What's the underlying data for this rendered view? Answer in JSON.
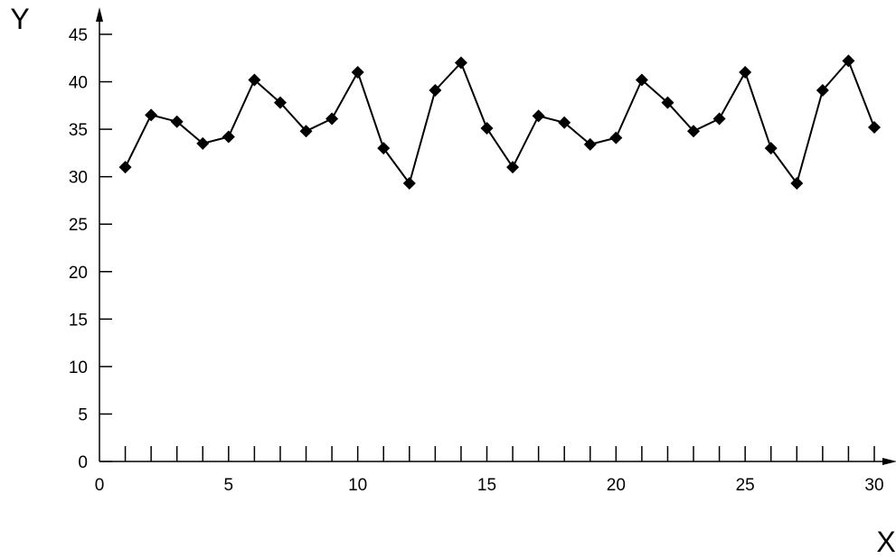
{
  "chart_data": {
    "type": "line",
    "title": "",
    "xlabel": "X",
    "ylabel": "Y",
    "xlim": [
      0,
      30
    ],
    "ylim": [
      0,
      45
    ],
    "x_ticks": [
      0,
      5,
      10,
      15,
      20,
      25,
      30
    ],
    "y_ticks": [
      0,
      5,
      10,
      15,
      20,
      25,
      30,
      35,
      40,
      45
    ],
    "x_tick_labels": [
      "0",
      "5",
      "10",
      "15",
      "20",
      "25",
      "30"
    ],
    "y_tick_labels": [
      "0",
      "5",
      "10",
      "15",
      "20",
      "25",
      "30",
      "35",
      "40",
      "45"
    ],
    "grid": false,
    "legend": "none",
    "marker": "diamond",
    "colors": {
      "line": "#000000",
      "marker": "#000000",
      "axis": "#000000"
    },
    "series": [
      {
        "x": [
          1,
          2,
          3,
          4,
          5,
          6,
          7,
          8,
          9,
          10,
          11,
          12,
          13,
          14,
          15,
          16,
          17,
          18,
          19,
          20,
          21,
          22,
          23,
          24,
          25,
          26,
          27,
          28,
          29,
          30
        ],
        "y": [
          31,
          36.5,
          35.8,
          33.5,
          34.2,
          40.2,
          37.8,
          34.8,
          36.1,
          41,
          33,
          29.3,
          39.1,
          42,
          35.1,
          31,
          36.4,
          35.7,
          33.4,
          34.1,
          40.2,
          37.8,
          34.8,
          36.1,
          41,
          33,
          29.3,
          39.1,
          42.2,
          35.2
        ]
      }
    ]
  }
}
